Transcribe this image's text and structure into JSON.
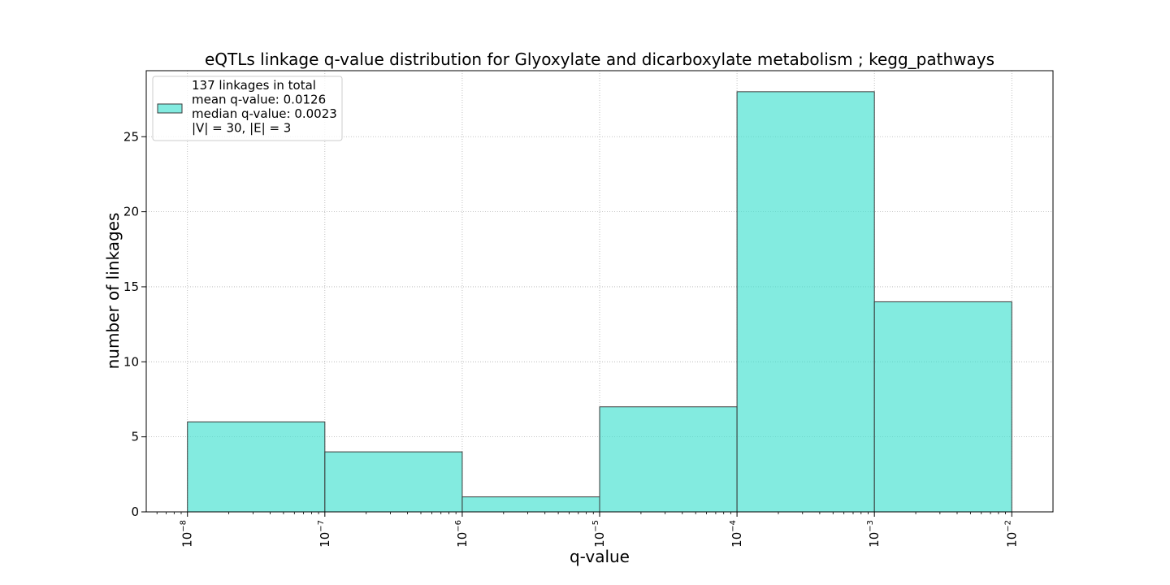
{
  "chart_data": {
    "type": "bar",
    "title": "eQTLs linkage q-value distribution for Glyoxylate and dicarboxylate metabolism ; kegg_pathways",
    "xlabel": "q-value",
    "ylabel": "number of linkages",
    "x_scale": "log",
    "x_tick_labels": [
      {
        "base": "10",
        "exp": "−8"
      },
      {
        "base": "10",
        "exp": "−7"
      },
      {
        "base": "10",
        "exp": "−6"
      },
      {
        "base": "10",
        "exp": "−5"
      },
      {
        "base": "10",
        "exp": "−4"
      },
      {
        "base": "10",
        "exp": "−3"
      },
      {
        "base": "10",
        "exp": "−2"
      }
    ],
    "x_tick_exponents": [
      -8,
      -7,
      -6,
      -5,
      -4,
      -3,
      -2
    ],
    "y_ticks": [
      0,
      5,
      10,
      15,
      20,
      25
    ],
    "bin_edges": [
      1e-08,
      1e-07,
      1e-06,
      1e-05,
      0.0001,
      0.001,
      0.01
    ],
    "series": [
      {
        "values": [
          6,
          4,
          1,
          7,
          28,
          14
        ],
        "color": "#40E0D0"
      }
    ],
    "legend": {
      "placement": "top-left",
      "lines": [
        "137 linkages in total",
        "mean q-value: 0.0126",
        "median q-value: 0.0023",
        "|V| = 30, |E| = 3"
      ]
    },
    "grid": true
  }
}
